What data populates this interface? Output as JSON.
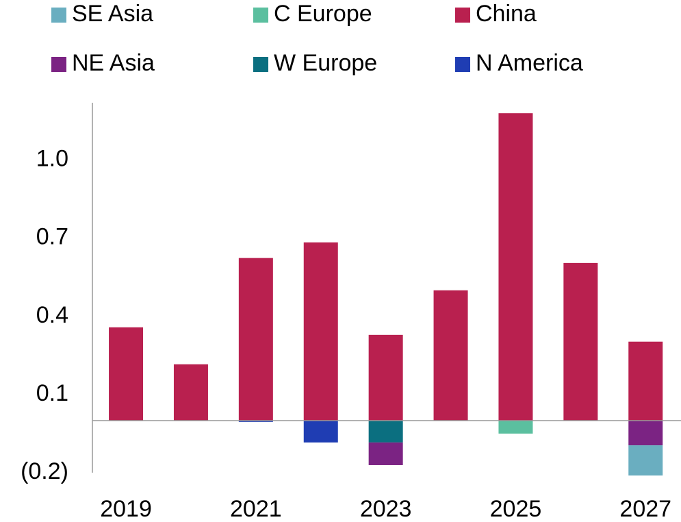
{
  "chart_data": {
    "type": "stacked_bar",
    "categories": [
      "2019",
      null,
      "2021",
      null,
      "2023",
      null,
      "2025",
      null,
      "2027"
    ],
    "series": [
      {
        "name": "SE Asia",
        "color": "#6aaec0",
        "values": [
          0,
          0,
          0,
          0,
          0,
          0,
          0,
          0,
          -0.116
        ]
      },
      {
        "name": "C Europe",
        "color": "#5bbf9f",
        "values": [
          0,
          0,
          0,
          0,
          0,
          0,
          -0.05,
          0,
          0
        ]
      },
      {
        "name": "China",
        "color": "#b9204f",
        "values": [
          0.358,
          0.216,
          0.624,
          0.684,
          0.329,
          0.5,
          1.18,
          0.605,
          0.303
        ]
      },
      {
        "name": "NE Asia",
        "color": "#7b2383",
        "values": [
          0,
          0,
          0,
          0,
          -0.087,
          0,
          0,
          0,
          -0.095
        ]
      },
      {
        "name": "W Europe",
        "color": "#0b6f80",
        "values": [
          0,
          0,
          0,
          0,
          -0.084,
          0,
          0,
          0,
          0
        ]
      },
      {
        "name": "N America",
        "color": "#1f3db3",
        "values": [
          0,
          0,
          -0.005,
          -0.084,
          0,
          0,
          0,
          0,
          0
        ]
      }
    ],
    "ylim": [
      -0.2,
      1.22
    ],
    "yticks": [
      {
        "value": -0.2,
        "label": "(0.2)"
      },
      0.1,
      0.4,
      0.7,
      {
        "value": 1,
        "label": "1.0"
      }
    ],
    "grid": false
  }
}
